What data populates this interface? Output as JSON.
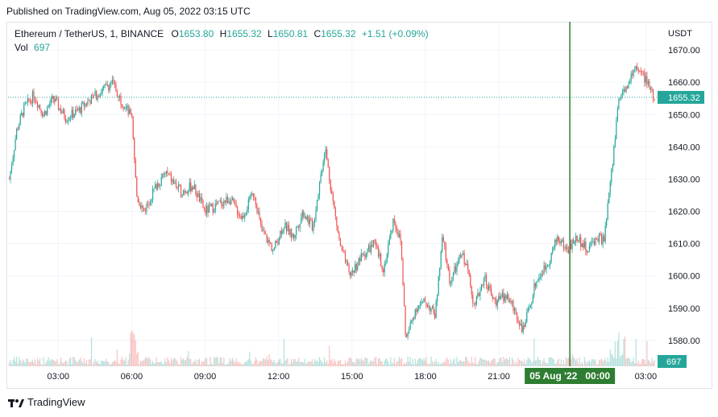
{
  "published_line": "Published on TradingView.com, Aug 05, 2022 03:15 UTC",
  "legend": {
    "symbol": "Ethereum / TetherUS, 1, BINANCE",
    "o_label": "O",
    "o_value": "1653.80",
    "h_label": "H",
    "h_value": "1655.32",
    "l_label": "L",
    "l_value": "1650.81",
    "c_label": "C",
    "c_value": "1655.32",
    "change": "+1.51 (+0.09%)",
    "vol_label": "Vol",
    "vol_value": "697"
  },
  "footer": {
    "brand": "TradingView"
  },
  "colors": {
    "up": "#26a69a",
    "down": "#ef5350",
    "crosshair": "#2e7d32",
    "grid": "#f0f3fa"
  },
  "chart_data": {
    "type": "candlestick",
    "currency_label": "USDT",
    "y_ticks": [
      1580,
      1590,
      1600,
      1610,
      1620,
      1630,
      1640,
      1650,
      1660,
      1670
    ],
    "y_tick_labels": [
      "1580.00",
      "1590.00",
      "1600.00",
      "1610.00",
      "1620.00",
      "1630.00",
      "1640.00",
      "1650.00",
      "1660.00",
      "1670.00"
    ],
    "ylim": [
      1572,
      1678
    ],
    "x_ticks": [
      "03:00",
      "06:00",
      "09:00",
      "12:00",
      "15:00",
      "18:00",
      "21:00",
      "00:00",
      "03:00"
    ],
    "x_tick_hours": [
      3,
      6,
      9,
      12,
      15,
      18,
      21,
      24,
      27
    ],
    "xlim_hours": [
      0.95,
      27.45
    ],
    "last_price_label": "1655.32",
    "last_price": 1655.32,
    "volume_label": "697",
    "crosshair_label": "05 Aug '22   00:00",
    "crosshair_hour": 23.9,
    "price_path": [
      [
        1.0,
        1630
      ],
      [
        1.3,
        1645
      ],
      [
        1.6,
        1652
      ],
      [
        2.0,
        1656
      ],
      [
        2.4,
        1650
      ],
      [
        2.8,
        1655
      ],
      [
        3.3,
        1649
      ],
      [
        3.8,
        1651
      ],
      [
        4.2,
        1654
      ],
      [
        4.7,
        1657
      ],
      [
        5.2,
        1660
      ],
      [
        5.6,
        1654
      ],
      [
        6.0,
        1649
      ],
      [
        6.2,
        1625
      ],
      [
        6.5,
        1620
      ],
      [
        7.0,
        1628
      ],
      [
        7.4,
        1632
      ],
      [
        8.0,
        1626
      ],
      [
        8.5,
        1628
      ],
      [
        9.0,
        1620
      ],
      [
        9.5,
        1622
      ],
      [
        10.0,
        1624
      ],
      [
        10.5,
        1618
      ],
      [
        11.0,
        1626
      ],
      [
        11.3,
        1614
      ],
      [
        11.8,
        1608
      ],
      [
        12.2,
        1616
      ],
      [
        12.6,
        1612
      ],
      [
        13.0,
        1620
      ],
      [
        13.4,
        1615
      ],
      [
        13.9,
        1640
      ],
      [
        14.2,
        1624
      ],
      [
        14.5,
        1610
      ],
      [
        14.9,
        1600
      ],
      [
        15.4,
        1606
      ],
      [
        15.9,
        1610
      ],
      [
        16.3,
        1602
      ],
      [
        16.7,
        1618
      ],
      [
        17.0,
        1610
      ],
      [
        17.2,
        1580
      ],
      [
        17.6,
        1590
      ],
      [
        18.0,
        1592
      ],
      [
        18.4,
        1588
      ],
      [
        18.7,
        1612
      ],
      [
        19.0,
        1598
      ],
      [
        19.5,
        1607
      ],
      [
        19.8,
        1600
      ],
      [
        20.0,
        1590
      ],
      [
        20.4,
        1600
      ],
      [
        20.8,
        1592
      ],
      [
        21.3,
        1594
      ],
      [
        21.6,
        1590
      ],
      [
        22.0,
        1583
      ],
      [
        22.5,
        1598
      ],
      [
        23.0,
        1604
      ],
      [
        23.4,
        1612
      ],
      [
        23.8,
        1608
      ],
      [
        24.2,
        1612
      ],
      [
        24.6,
        1608
      ],
      [
        25.0,
        1612
      ],
      [
        25.3,
        1611
      ],
      [
        25.6,
        1632
      ],
      [
        25.9,
        1655
      ],
      [
        26.2,
        1658
      ],
      [
        26.6,
        1665
      ],
      [
        26.9,
        1662
      ],
      [
        27.2,
        1658
      ],
      [
        27.4,
        1653
      ]
    ]
  }
}
